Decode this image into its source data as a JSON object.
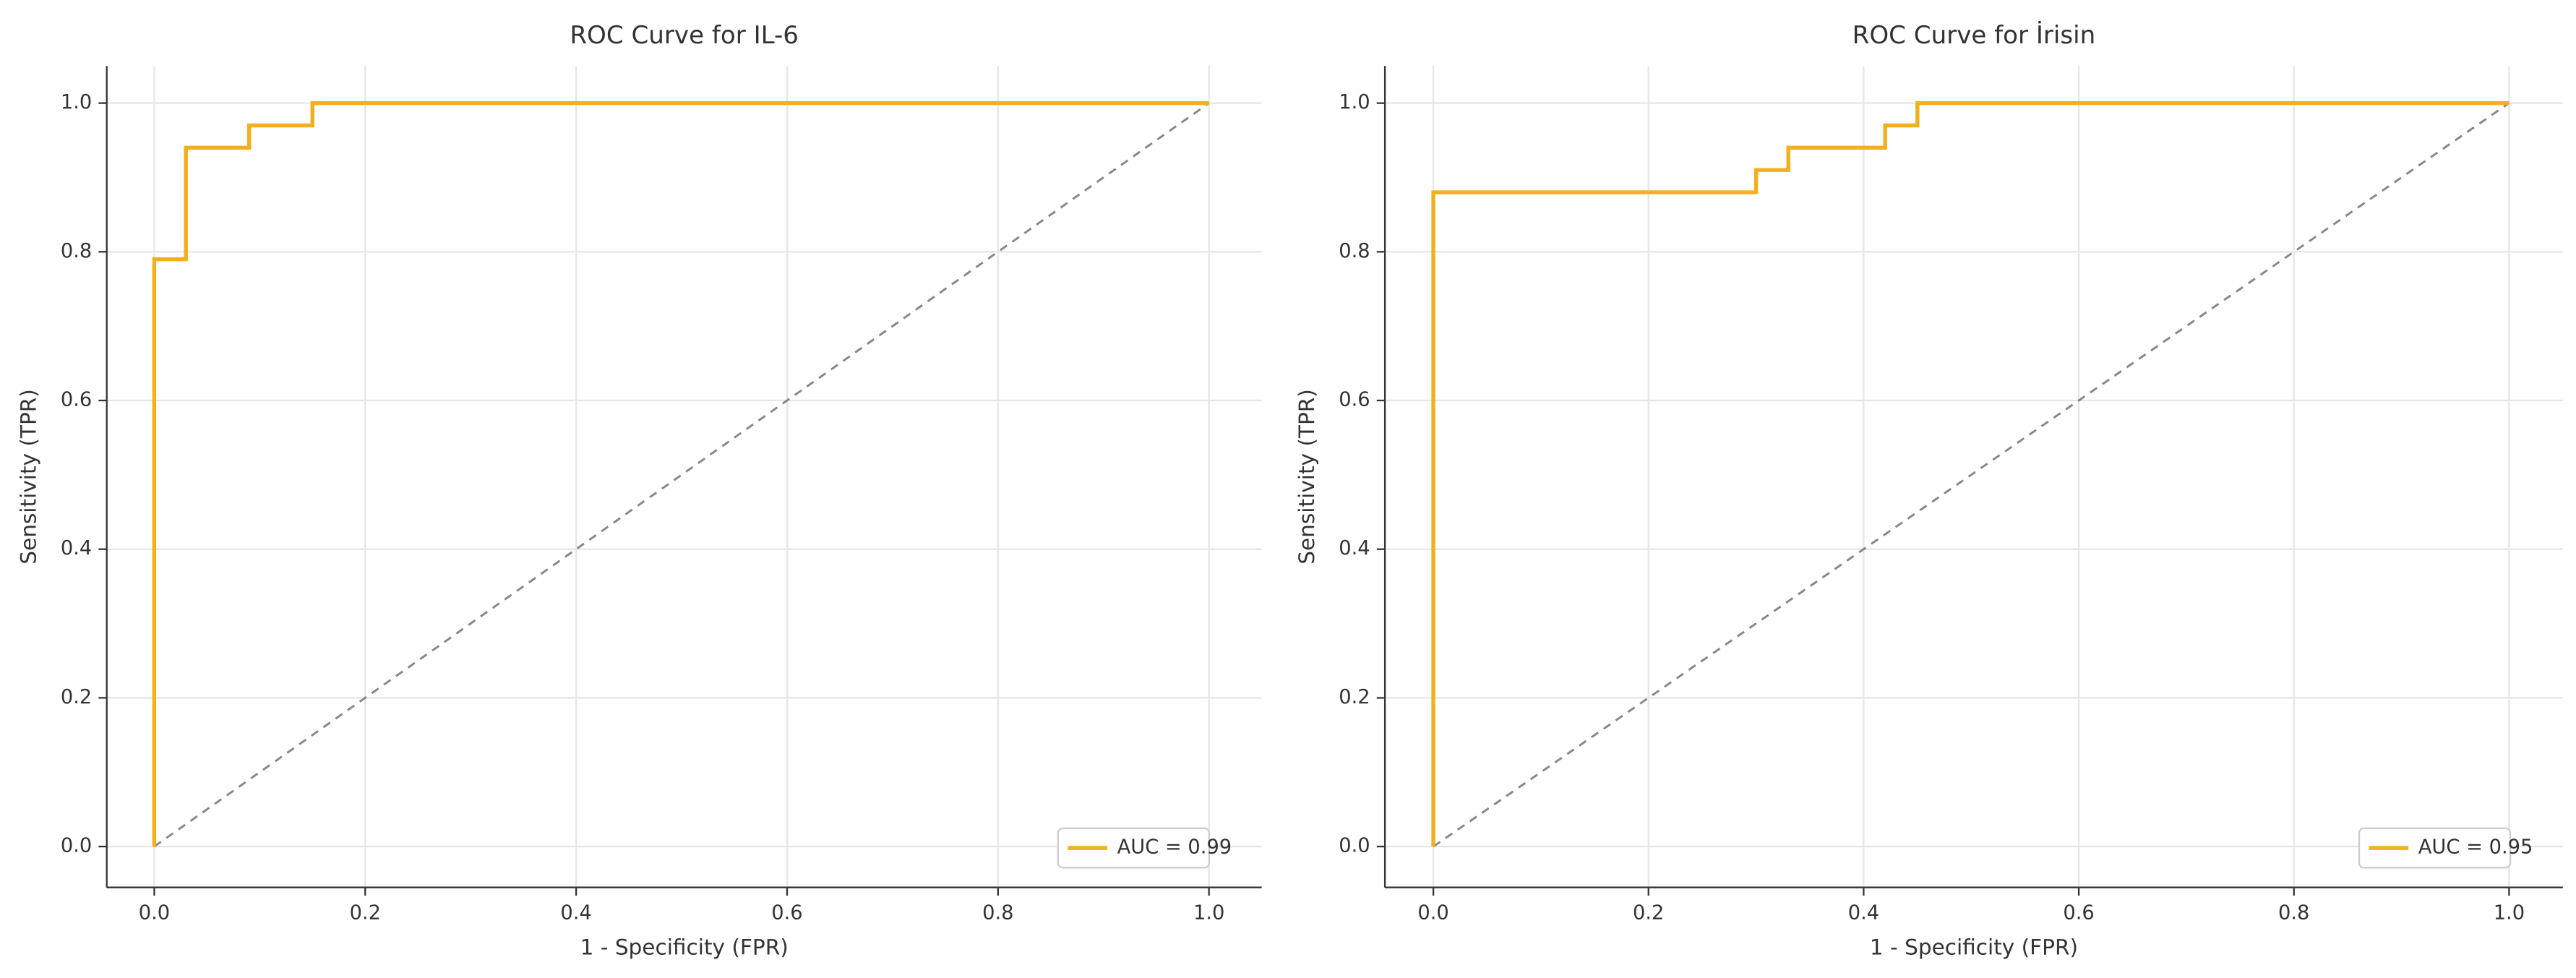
{
  "chart_data": [
    {
      "type": "line",
      "title": "ROC Curve for IL-6",
      "xlabel": "1 - Specificity (FPR)",
      "ylabel": "Sensitivity (TPR)",
      "x": [
        0,
        0,
        0.03,
        0.03,
        0.09,
        0.09,
        0.15,
        0.15,
        1
      ],
      "series": [
        {
          "name": "AUC = 0.99",
          "color": "#f2b01e",
          "values": [
            0,
            0.79,
            0.79,
            0.94,
            0.94,
            0.97,
            0.97,
            1,
            1
          ]
        }
      ],
      "xlim": [
        -0.045,
        1.05
      ],
      "ylim": [
        -0.055,
        1.05
      ],
      "xticks": [
        {
          "value": 0,
          "label": "0.0"
        },
        0.2,
        0.4,
        0.6,
        0.8,
        {
          "value": 1,
          "label": "1.0"
        }
      ],
      "yticks": [
        {
          "value": 0,
          "label": "0.0"
        },
        0.2,
        0.4,
        0.6,
        0.8,
        {
          "value": 1,
          "label": "1.0"
        }
      ],
      "grid": true,
      "legend": "lower right"
    },
    {
      "type": "line",
      "title": "ROC Curve for İrisin",
      "xlabel": "1 - Specificity (FPR)",
      "ylabel": "Sensitivity (TPR)",
      "x": [
        0,
        0,
        0.3,
        0.3,
        0.33,
        0.33,
        0.42,
        0.42,
        0.45,
        0.45,
        1
      ],
      "series": [
        {
          "name": "AUC = 0.95",
          "color": "#f2b01e",
          "values": [
            0,
            0.88,
            0.88,
            0.91,
            0.91,
            0.94,
            0.94,
            0.97,
            0.97,
            1,
            1
          ]
        }
      ],
      "xlim": [
        -0.045,
        1.05
      ],
      "ylim": [
        -0.055,
        1.05
      ],
      "xticks": [
        {
          "value": 0,
          "label": "0.0"
        },
        0.2,
        0.4,
        0.6,
        0.8,
        {
          "value": 1,
          "label": "1.0"
        }
      ],
      "yticks": [
        {
          "value": 0,
          "label": "0.0"
        },
        0.2,
        0.4,
        0.6,
        0.8,
        {
          "value": 1,
          "label": "1.0"
        }
      ],
      "grid": true,
      "legend": "lower right"
    }
  ]
}
